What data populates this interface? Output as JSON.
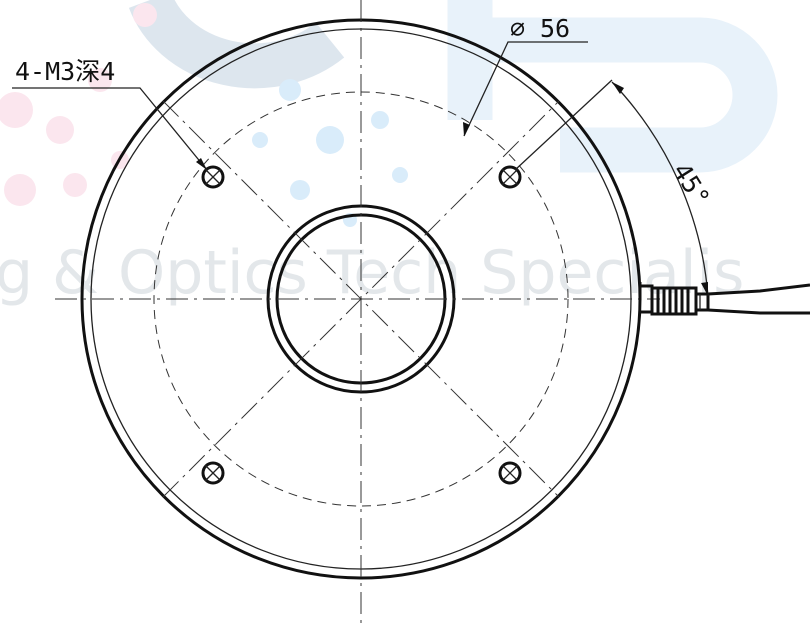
{
  "watermark": {
    "text": "g & Optics Tech Specialis"
  },
  "annotations": {
    "holes_label": "4-M3深4",
    "diameter_symbol": "∅",
    "diameter_value": "56",
    "angle_label": "45°"
  },
  "colors": {
    "line": "#111111",
    "watermark_gray": "#e3e7ea",
    "watermark_blue": "#d9ecfa",
    "watermark_pink": "#fbe6ee"
  }
}
